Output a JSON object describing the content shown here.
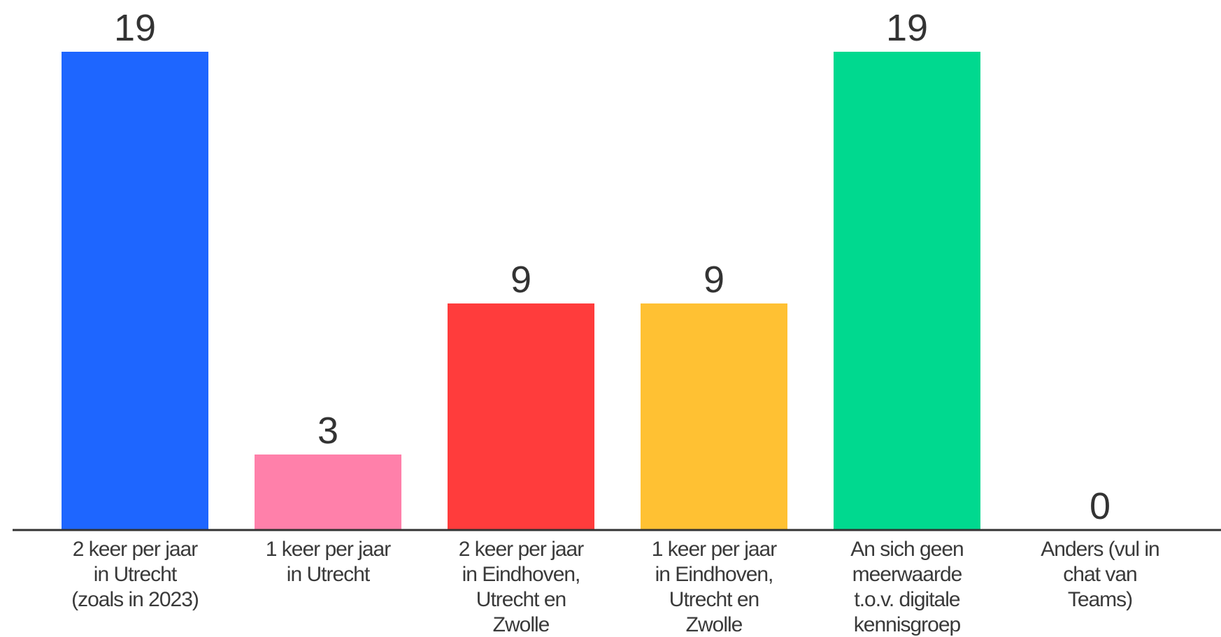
{
  "chart_data": {
    "type": "bar",
    "categories": [
      [
        "2 keer per jaar",
        "in Utrecht",
        "(zoals in 2023)"
      ],
      [
        "1 keer per jaar",
        "in Utrecht"
      ],
      [
        "2 keer per jaar",
        "in Eindhoven,",
        "Utrecht en",
        "Zwolle"
      ],
      [
        "1 keer per jaar",
        "in Eindhoven,",
        "Utrecht en",
        "Zwolle"
      ],
      [
        "An sich geen",
        "meerwaarde",
        "t.o.v. digitale",
        "kennisgroep"
      ],
      [
        "Anders (vul in",
        "chat van",
        "Teams)"
      ]
    ],
    "values": [
      19,
      3,
      9,
      9,
      19,
      0
    ],
    "colors": [
      "#1e66ff",
      "#ff80aa",
      "#ff3c3c",
      "#ffc133",
      "#00d98f",
      "#cccccc"
    ],
    "axis_color": "#333333",
    "ylim": [
      0,
      19
    ],
    "grid": false,
    "title": "",
    "xlabel": "",
    "ylabel": ""
  }
}
